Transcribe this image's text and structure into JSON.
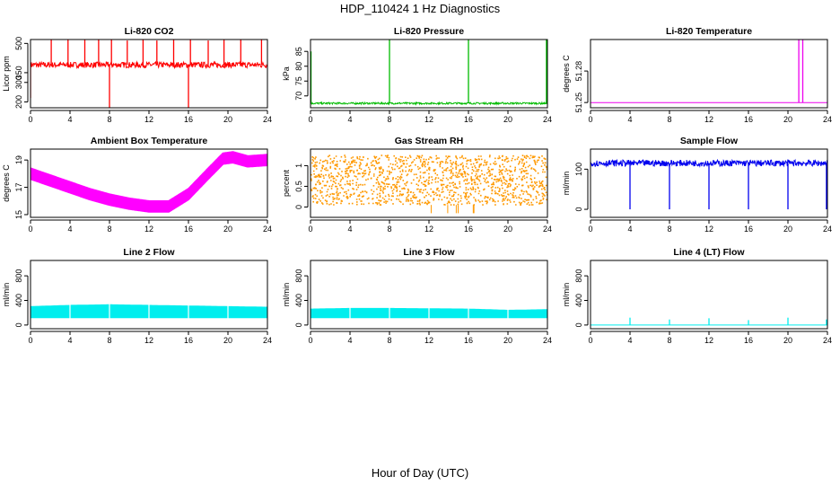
{
  "page": {
    "title": "HDP_110424  1 Hz Diagnostics",
    "x_caption": "Hour of Day (UTC)"
  },
  "chart_data": [
    {
      "type": "line",
      "id": "co2",
      "title": "Li-820 CO2",
      "ylabel": "Licor ppm",
      "color": "#ff0000",
      "xlim": [
        0,
        24
      ],
      "xticks": [
        0,
        4,
        8,
        12,
        16,
        20,
        24
      ],
      "ylim": [
        170,
        520
      ],
      "yticks": [
        200,
        300,
        350,
        500
      ],
      "pattern": {
        "kind": "baseline",
        "base": 390,
        "noise": 15
      },
      "spikes": [
        {
          "x": 0.0,
          "y": 220
        },
        {
          "x": 2.1,
          "y": 520
        },
        {
          "x": 3.8,
          "y": 520
        },
        {
          "x": 5.5,
          "y": 520
        },
        {
          "x": 6.9,
          "y": 520
        },
        {
          "x": 8.0,
          "y": 170
        },
        {
          "x": 8.2,
          "y": 520
        },
        {
          "x": 9.8,
          "y": 515
        },
        {
          "x": 11.4,
          "y": 520
        },
        {
          "x": 12.8,
          "y": 515
        },
        {
          "x": 14.5,
          "y": 520
        },
        {
          "x": 16.0,
          "y": 170
        },
        {
          "x": 16.2,
          "y": 520
        },
        {
          "x": 18.0,
          "y": 515
        },
        {
          "x": 19.6,
          "y": 520
        },
        {
          "x": 21.3,
          "y": 520
        },
        {
          "x": 23.4,
          "y": 520
        }
      ]
    },
    {
      "type": "line",
      "id": "pressure",
      "title": "Li-820 Pressure",
      "ylabel": "kPa",
      "color": "#00bb00",
      "xlim": [
        0,
        24
      ],
      "xticks": [
        0,
        4,
        8,
        12,
        16,
        20,
        24
      ],
      "ylim": [
        66,
        89
      ],
      "yticks": [
        70,
        75,
        80,
        85
      ],
      "pattern": {
        "kind": "baseline",
        "base": 67.5,
        "noise": 0.3
      },
      "spikes": [
        {
          "x": 0.05,
          "y": 85
        },
        {
          "x": 8.0,
          "y": 89
        },
        {
          "x": 16.0,
          "y": 89
        },
        {
          "x": 23.9,
          "y": 89
        }
      ]
    },
    {
      "type": "line",
      "id": "licor-temperature",
      "title": "Li-820 Temperature",
      "ylabel": "degrees C",
      "color": "#ee00ee",
      "xlim": [
        0,
        24
      ],
      "xticks": [
        0,
        4,
        8,
        12,
        16,
        20,
        24
      ],
      "ylim": [
        51.245,
        51.31
      ],
      "yticks": [
        51.25,
        51.28
      ],
      "pattern": {
        "kind": "flat",
        "base": 51.25
      },
      "spikes": [
        {
          "x": 21.1,
          "y": 51.31
        },
        {
          "x": 21.5,
          "y": 51.31
        }
      ]
    },
    {
      "type": "line",
      "id": "ambient-box-temperature",
      "title": "Ambient Box Temperature",
      "ylabel": "degrees C",
      "color": "#ff00ff",
      "xlim": [
        0,
        24
      ],
      "xticks": [
        0,
        4,
        8,
        12,
        16,
        20,
        24
      ],
      "ylim": [
        14.8,
        19.8
      ],
      "yticks": [
        15,
        17,
        19
      ],
      "pattern": {
        "kind": "band",
        "noise": 0.45
      },
      "series": [
        {
          "x": 0,
          "y": 18.0
        },
        {
          "x": 2,
          "y": 17.5
        },
        {
          "x": 4,
          "y": 17.0
        },
        {
          "x": 6,
          "y": 16.5
        },
        {
          "x": 8,
          "y": 16.1
        },
        {
          "x": 10,
          "y": 15.8
        },
        {
          "x": 12,
          "y": 15.6
        },
        {
          "x": 14,
          "y": 15.6
        },
        {
          "x": 16,
          "y": 16.5
        },
        {
          "x": 18,
          "y": 18.0
        },
        {
          "x": 19.5,
          "y": 19.1
        },
        {
          "x": 20.5,
          "y": 19.2
        },
        {
          "x": 22,
          "y": 18.9
        },
        {
          "x": 24,
          "y": 19.0
        }
      ]
    },
    {
      "type": "scatter",
      "id": "gas-stream-rh",
      "title": "Gas Stream RH",
      "ylabel": "percent",
      "color": "#ff9900",
      "xlim": [
        0,
        24
      ],
      "xticks": [
        0,
        4,
        8,
        12,
        16,
        20,
        24
      ],
      "ylim": [
        -0.25,
        1.4
      ],
      "yticks": [
        0.0,
        0.5,
        1.0
      ],
      "pattern": {
        "kind": "scatter",
        "low": 0.05,
        "high": 1.25
      }
    },
    {
      "type": "line",
      "id": "sample-flow",
      "title": "Sample Flow",
      "ylabel": "ml/min",
      "color": "#0000ee",
      "xlim": [
        0,
        24
      ],
      "xticks": [
        0,
        4,
        8,
        12,
        16,
        20,
        24
      ],
      "ylim": [
        -20,
        150
      ],
      "yticks": [
        0,
        100
      ],
      "pattern": {
        "kind": "baseline",
        "base": 115,
        "noise": 8
      },
      "spikes": [
        {
          "x": 4.0,
          "y": 0
        },
        {
          "x": 8.0,
          "y": 0
        },
        {
          "x": 12.0,
          "y": 0
        },
        {
          "x": 16.0,
          "y": 0
        },
        {
          "x": 20.0,
          "y": 0
        },
        {
          "x": 23.9,
          "y": 0
        }
      ]
    },
    {
      "type": "area",
      "id": "line-2-flow",
      "title": "Line 2 Flow",
      "ylabel": "ml/min",
      "color": "#00eeee",
      "xlim": [
        0,
        24
      ],
      "xticks": [
        0,
        4,
        8,
        12,
        16,
        20,
        24
      ],
      "ylim": [
        -60,
        1050
      ],
      "yticks": [
        0,
        400,
        800
      ],
      "pattern": {
        "kind": "band-fill",
        "low": 120
      },
      "series": [
        {
          "x": 0,
          "y": 300
        },
        {
          "x": 4,
          "y": 320
        },
        {
          "x": 8,
          "y": 330
        },
        {
          "x": 12,
          "y": 320
        },
        {
          "x": 16,
          "y": 310
        },
        {
          "x": 20,
          "y": 300
        },
        {
          "x": 24,
          "y": 290
        }
      ],
      "gaps": [
        4.0,
        8.0,
        12.0,
        16.0,
        20.0
      ]
    },
    {
      "type": "area",
      "id": "line-3-flow",
      "title": "Line 3 Flow",
      "ylabel": "ml/min",
      "color": "#00eeee",
      "xlim": [
        0,
        24
      ],
      "xticks": [
        0,
        4,
        8,
        12,
        16,
        20,
        24
      ],
      "ylim": [
        -60,
        1050
      ],
      "yticks": [
        0,
        400,
        800
      ],
      "pattern": {
        "kind": "band-fill",
        "low": 120
      },
      "series": [
        {
          "x": 0,
          "y": 260
        },
        {
          "x": 4,
          "y": 270
        },
        {
          "x": 8,
          "y": 270
        },
        {
          "x": 12,
          "y": 265
        },
        {
          "x": 16,
          "y": 260
        },
        {
          "x": 20,
          "y": 240
        },
        {
          "x": 24,
          "y": 250
        }
      ],
      "gaps": [
        4.0,
        8.0,
        12.0,
        16.0,
        20.0
      ]
    },
    {
      "type": "line",
      "id": "line-4-flow",
      "title": "Line 4 (LT) Flow",
      "ylabel": "ml/min",
      "color": "#00eeee",
      "xlim": [
        0,
        24
      ],
      "xticks": [
        0,
        4,
        8,
        12,
        16,
        20,
        24
      ],
      "ylim": [
        -60,
        1050
      ],
      "yticks": [
        0,
        400,
        800
      ],
      "pattern": {
        "kind": "flat",
        "base": 0
      },
      "spikes": [
        {
          "x": 4.0,
          "y": 120
        },
        {
          "x": 8.0,
          "y": 90
        },
        {
          "x": 12.0,
          "y": 110
        },
        {
          "x": 16.0,
          "y": 80
        },
        {
          "x": 20.0,
          "y": 120
        },
        {
          "x": 23.9,
          "y": 90
        }
      ]
    }
  ]
}
